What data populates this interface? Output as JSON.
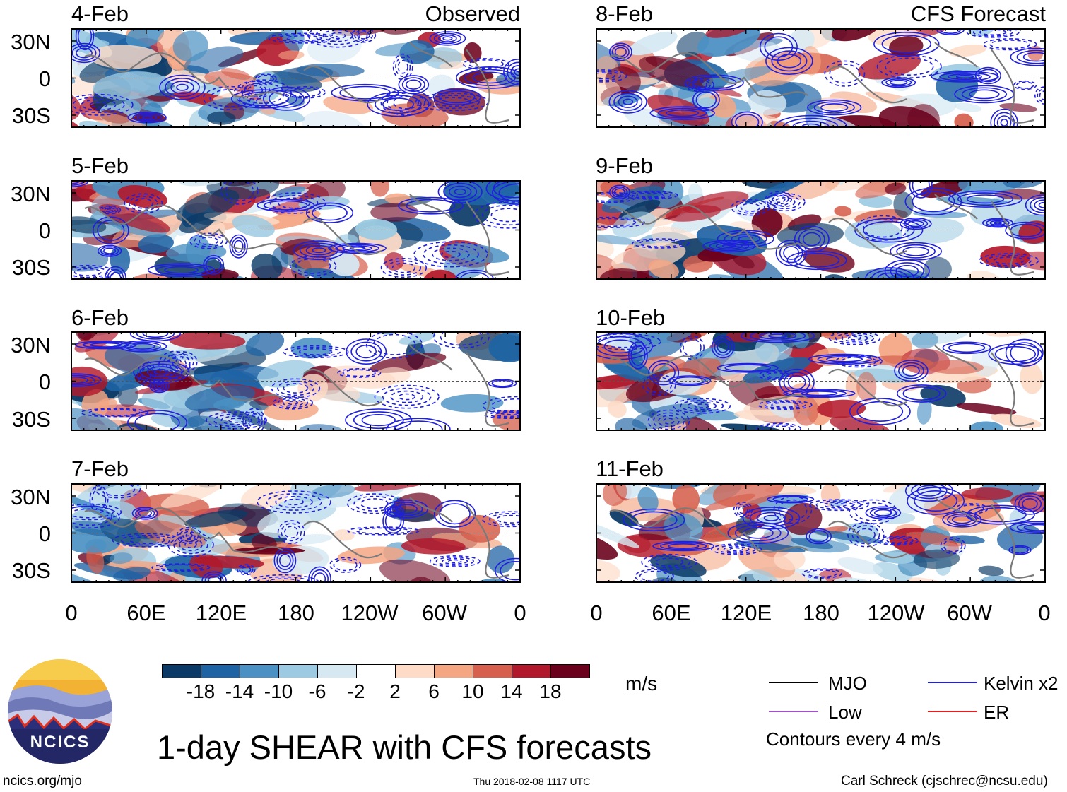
{
  "chart_data": {
    "type": "heatmap",
    "title": "1-day SHEAR with CFS forecasts",
    "variable": "SHEAR",
    "units": "m/s",
    "x_ticks": [
      "0",
      "60E",
      "120E",
      "180",
      "120W",
      "60W",
      "0"
    ],
    "y_ticks": [
      "30N",
      "0",
      "30S"
    ],
    "columns": [
      {
        "label": "Observed",
        "panels": [
          "4-Feb",
          "5-Feb",
          "6-Feb",
          "7-Feb"
        ]
      },
      {
        "label": "CFS Forecast",
        "panels": [
          "8-Feb",
          "9-Feb",
          "10-Feb",
          "11-Feb"
        ]
      }
    ],
    "colorbar": {
      "colors": [
        "#0b3a66",
        "#1e63a4",
        "#4b91c3",
        "#9ccae2",
        "#d6e9f3",
        "#ffffff",
        "#fddbc7",
        "#f4a582",
        "#d6604d",
        "#b2182b",
        "#6b001c"
      ],
      "labels": [
        "-18",
        "-14",
        "-10",
        "-6",
        "-2",
        "2",
        "6",
        "10",
        "14",
        "18"
      ]
    },
    "legend": [
      {
        "label": "MJO",
        "color": "#000000"
      },
      {
        "label": "Kelvin x2",
        "color": "#1f1fe0"
      },
      {
        "label": "Low",
        "color": "#a050c8"
      },
      {
        "label": "ER",
        "color": "#e02020"
      }
    ],
    "contour_note": "Contours every 4 m/s"
  },
  "branding": {
    "logo_text": "NCICS",
    "url": "ncics.org/mjo"
  },
  "timestamp": "Thu 2018-02-08 1117 UTC",
  "credit": "Carl Schreck (cjschrec@ncsu.edu)"
}
